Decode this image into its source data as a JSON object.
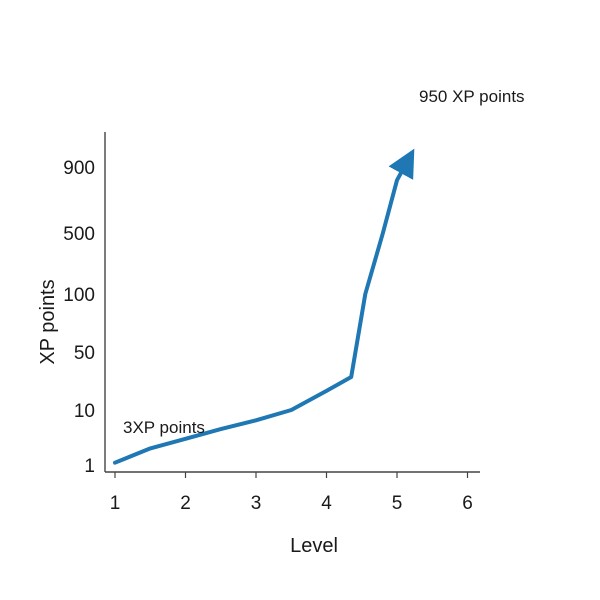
{
  "chart_data": {
    "type": "line",
    "title": "",
    "xlabel": "Level",
    "ylabel": "XP  points",
    "x_ticks": [
      "1",
      "2",
      "3",
      "4",
      "5",
      "6"
    ],
    "y_ticks": [
      "1",
      "10",
      "50",
      "100",
      "500",
      "900"
    ],
    "xlim": [
      1,
      6
    ],
    "grid": false,
    "legend": "none",
    "series": [
      {
        "color": "#1f77b4",
        "points": [
          {
            "x": 1.0,
            "y": 1.1
          },
          {
            "x": 1.5,
            "y": 2
          },
          {
            "x": 2.0,
            "y": 3
          },
          {
            "x": 2.5,
            "y": 4.5
          },
          {
            "x": 3.0,
            "y": 6.5
          },
          {
            "x": 3.5,
            "y": 10
          },
          {
            "x": 4.0,
            "y": 17
          },
          {
            "x": 4.35,
            "y": 25
          },
          {
            "x": 4.55,
            "y": 100
          },
          {
            "x": 4.8,
            "y": 500
          },
          {
            "x": 5.0,
            "y": 800
          },
          {
            "x": 5.15,
            "y": 950
          }
        ],
        "end_marker": "arrow"
      }
    ],
    "annotations": [
      {
        "text": "3XP points",
        "x": 1.1,
        "y": 3
      },
      {
        "text": "950 XP points",
        "x": 5.3,
        "y": 950
      }
    ]
  }
}
